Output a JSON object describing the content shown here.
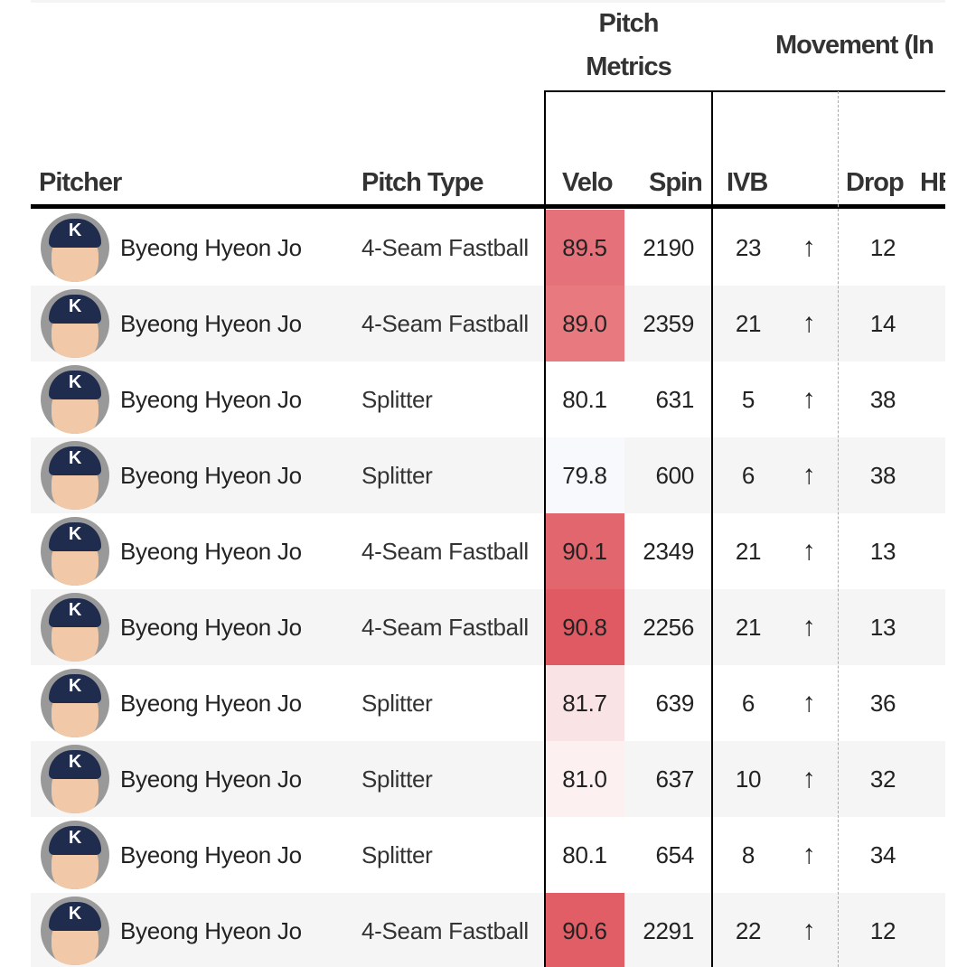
{
  "header": {
    "group_pitch_metrics": [
      "Pitch",
      "Metrics"
    ],
    "group_movement": "Movement (In",
    "columns": {
      "pitcher": "Pitcher",
      "pitch_type": "Pitch Type",
      "velo": "Velo",
      "spin": "Spin",
      "ivb": "IVB",
      "drop": "Drop",
      "hb": "HB"
    }
  },
  "avatar_icon": "pitcher-headshot-icon",
  "avatar_cap_letter": "K",
  "arrow_icon": "arrow-up-icon",
  "arrow_glyph": "↑",
  "rows": [
    {
      "pitcher": "Byeong Hyeon Jo",
      "pitch_type": "4-Seam Fastball",
      "velo": "89.5",
      "velo_color": "#e5727a",
      "spin": "2190",
      "ivb": "23",
      "drop": "12"
    },
    {
      "pitcher": "Byeong Hyeon Jo",
      "pitch_type": "4-Seam Fastball",
      "velo": "89.0",
      "velo_color": "#e8797f",
      "spin": "2359",
      "ivb": "21",
      "drop": "14"
    },
    {
      "pitcher": "Byeong Hyeon Jo",
      "pitch_type": "Splitter",
      "velo": "80.1",
      "velo_color": "#ffffff",
      "spin": "631",
      "ivb": "5",
      "drop": "38"
    },
    {
      "pitcher": "Byeong Hyeon Jo",
      "pitch_type": "Splitter",
      "velo": "79.8",
      "velo_color": "#f8f9fd",
      "spin": "600",
      "ivb": "6",
      "drop": "38"
    },
    {
      "pitcher": "Byeong Hyeon Jo",
      "pitch_type": "4-Seam Fastball",
      "velo": "90.1",
      "velo_color": "#e2666e",
      "spin": "2349",
      "ivb": "21",
      "drop": "13"
    },
    {
      "pitcher": "Byeong Hyeon Jo",
      "pitch_type": "4-Seam Fastball",
      "velo": "90.8",
      "velo_color": "#e05a63",
      "spin": "2256",
      "ivb": "21",
      "drop": "13"
    },
    {
      "pitcher": "Byeong Hyeon Jo",
      "pitch_type": "Splitter",
      "velo": "81.7",
      "velo_color": "#fae3e4",
      "spin": "639",
      "ivb": "6",
      "drop": "36"
    },
    {
      "pitcher": "Byeong Hyeon Jo",
      "pitch_type": "Splitter",
      "velo": "81.0",
      "velo_color": "#fdf0f0",
      "spin": "637",
      "ivb": "10",
      "drop": "32"
    },
    {
      "pitcher": "Byeong Hyeon Jo",
      "pitch_type": "Splitter",
      "velo": "80.1",
      "velo_color": "#ffffff",
      "spin": "654",
      "ivb": "8",
      "drop": "34"
    },
    {
      "pitcher": "Byeong Hyeon Jo",
      "pitch_type": "4-Seam Fastball",
      "velo": "90.6",
      "velo_color": "#e15e66",
      "spin": "2291",
      "ivb": "22",
      "drop": "12"
    }
  ]
}
